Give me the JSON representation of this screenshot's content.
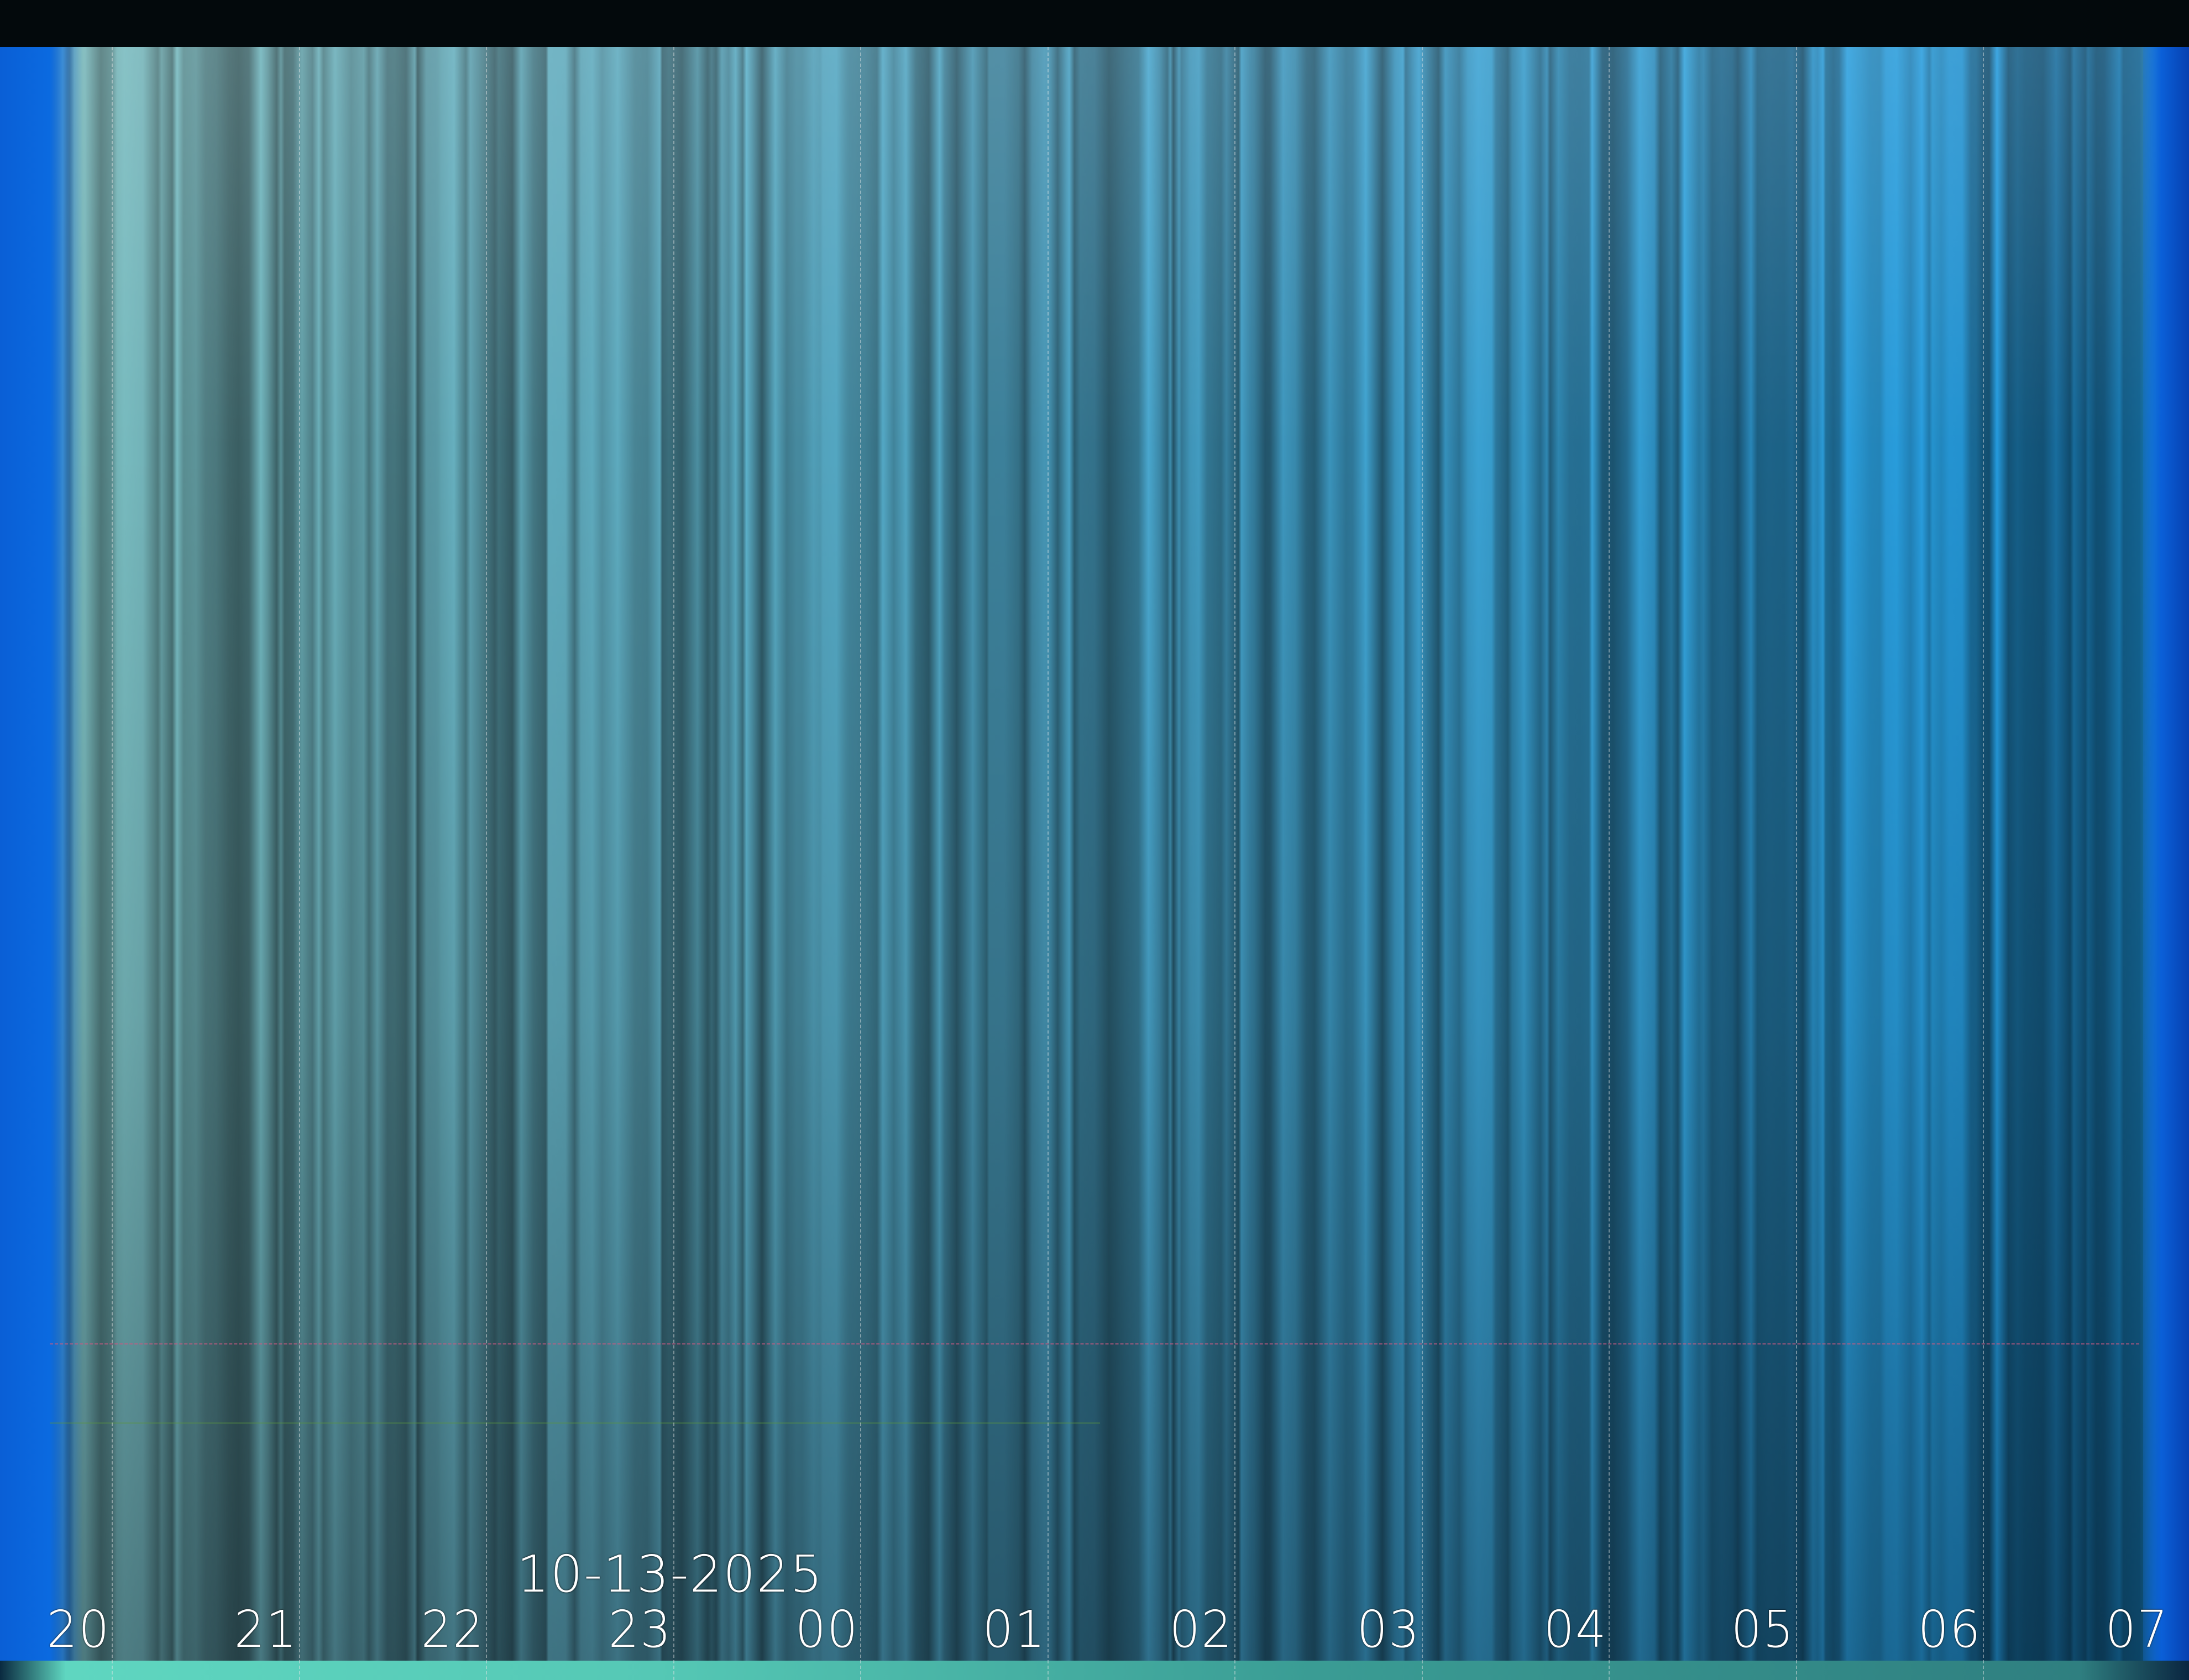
{
  "image": {
    "kind": "keogram",
    "date_label": "10-13-2025",
    "hour_labels": [
      "20",
      "21",
      "22",
      "23",
      "00",
      "01",
      "02",
      "03",
      "04",
      "05",
      "06",
      "07"
    ],
    "colors": {
      "early_sky": "#7fb0a8",
      "late_sky": "#2a86c6",
      "edge_blue": "#0a5fd6",
      "top_bar": "#03090c",
      "bottom_band": "#55c8b5",
      "label_text": "#ffffff"
    }
  }
}
